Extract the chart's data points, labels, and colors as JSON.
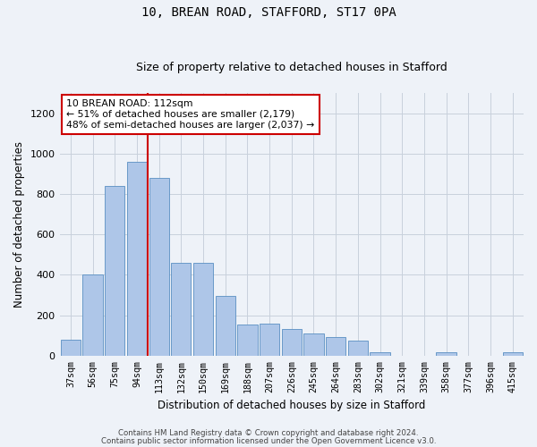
{
  "title1": "10, BREAN ROAD, STAFFORD, ST17 0PA",
  "title2": "Size of property relative to detached houses in Stafford",
  "xlabel": "Distribution of detached houses by size in Stafford",
  "ylabel": "Number of detached properties",
  "categories": [
    "37sqm",
    "56sqm",
    "75sqm",
    "94sqm",
    "113sqm",
    "132sqm",
    "150sqm",
    "169sqm",
    "188sqm",
    "207sqm",
    "226sqm",
    "245sqm",
    "264sqm",
    "283sqm",
    "302sqm",
    "321sqm",
    "339sqm",
    "358sqm",
    "377sqm",
    "396sqm",
    "415sqm"
  ],
  "values": [
    80,
    400,
    840,
    960,
    880,
    460,
    460,
    295,
    155,
    160,
    130,
    110,
    90,
    75,
    18,
    0,
    0,
    18,
    0,
    0,
    18
  ],
  "bar_color": "#aec6e8",
  "bar_edge_color": "#5a8fc2",
  "vline_color": "#cc0000",
  "vline_index": 4,
  "annotation_text": "10 BREAN ROAD: 112sqm\n← 51% of detached houses are smaller (2,179)\n48% of semi-detached houses are larger (2,037) →",
  "annotation_box_facecolor": "#ffffff",
  "annotation_box_edgecolor": "#cc0000",
  "ylim": [
    0,
    1300
  ],
  "yticks": [
    0,
    200,
    400,
    600,
    800,
    1000,
    1200
  ],
  "footer1": "Contains HM Land Registry data © Crown copyright and database right 2024.",
  "footer2": "Contains public sector information licensed under the Open Government Licence v3.0.",
  "bg_color": "#eef2f8",
  "grid_color": "#c8d0dc"
}
